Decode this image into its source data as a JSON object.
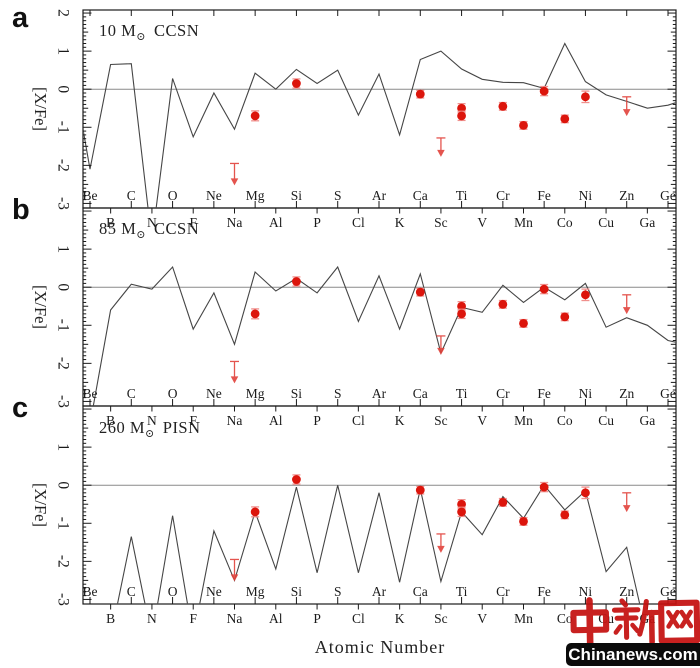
{
  "figure": {
    "kind": "three-panel stellar abundance pattern comparison",
    "background": "#ffffff"
  },
  "axis": {
    "xlabel": "Atomic Number",
    "ylabel": "[X/Fe]",
    "ytick_labels": [
      "2",
      "1",
      "0",
      "-1",
      "-2",
      "-3"
    ],
    "ytick_values": [
      2,
      1,
      0,
      -1,
      -2,
      -3
    ],
    "x_range_z": [
      4,
      32
    ],
    "elements": [
      {
        "z": 4,
        "sym": "Be"
      },
      {
        "z": 5,
        "sym": "B"
      },
      {
        "z": 6,
        "sym": "C"
      },
      {
        "z": 7,
        "sym": "N"
      },
      {
        "z": 8,
        "sym": "O"
      },
      {
        "z": 9,
        "sym": "F"
      },
      {
        "z": 10,
        "sym": "Ne"
      },
      {
        "z": 11,
        "sym": "Na"
      },
      {
        "z": 12,
        "sym": "Mg"
      },
      {
        "z": 13,
        "sym": "Al"
      },
      {
        "z": 14,
        "sym": "Si"
      },
      {
        "z": 15,
        "sym": "P"
      },
      {
        "z": 16,
        "sym": "S"
      },
      {
        "z": 17,
        "sym": "Cl"
      },
      {
        "z": 18,
        "sym": "Ar"
      },
      {
        "z": 19,
        "sym": "K"
      },
      {
        "z": 20,
        "sym": "Ca"
      },
      {
        "z": 21,
        "sym": "Sc"
      },
      {
        "z": 22,
        "sym": "Ti"
      },
      {
        "z": 23,
        "sym": "V"
      },
      {
        "z": 24,
        "sym": "Cr"
      },
      {
        "z": 25,
        "sym": "Mn"
      },
      {
        "z": 26,
        "sym": "Fe"
      },
      {
        "z": 27,
        "sym": "Co"
      },
      {
        "z": 28,
        "sym": "Ni"
      },
      {
        "z": 29,
        "sym": "Cu"
      },
      {
        "z": 30,
        "sym": "Zn"
      },
      {
        "z": 31,
        "sym": "Ga"
      },
      {
        "z": 32,
        "sym": "Ge"
      }
    ]
  },
  "panels": [
    {
      "letter": "a",
      "title": "10 M⊙ CCSN",
      "title_pre": "10 M",
      "title_sub": "⊙",
      "title_post": "CCSN"
    },
    {
      "letter": "b",
      "title": "85 M⊙ CCSN",
      "title_pre": "85 M",
      "title_sub": "⊙",
      "title_post": "CCSN"
    },
    {
      "letter": "c",
      "title": "260 M⊙ PISN",
      "title_pre": "260 M",
      "title_sub": "⊙",
      "title_post": "PISN"
    }
  ],
  "chart_data": [
    {
      "id": "a",
      "type": "line",
      "title": "10 M⊙ CCSN",
      "xlabel": "Atomic Number",
      "ylabel": "[X/Fe]",
      "ylim": [
        -3.12,
        2.08
      ],
      "x_atomic_numbers": [
        4,
        5,
        6,
        7,
        8,
        9,
        10,
        11,
        12,
        13,
        14,
        15,
        16,
        17,
        18,
        19,
        20,
        21,
        22,
        23,
        24,
        25,
        26,
        27,
        28,
        29,
        30,
        31,
        32
      ],
      "note": "model values of -4 are off-scale (line plunges below plot)",
      "model_xfe": [
        -2.1,
        0.65,
        0.67,
        -4,
        0.28,
        -1.25,
        -0.1,
        -1.05,
        0.42,
        0.0,
        0.52,
        0.15,
        0.5,
        -0.68,
        0.4,
        -1.2,
        0.78,
        1.0,
        0.53,
        0.26,
        0.18,
        0.17,
        0.02,
        1.2,
        0.2,
        -0.15,
        -0.32,
        -0.5,
        -0.42
      ],
      "edge_points": {
        "pre": {
          "z": 3.66,
          "v": -1.05
        },
        "post": {
          "z": 32.4,
          "v": -0.35
        }
      },
      "observed": [
        {
          "el": "Na",
          "z": 11,
          "kind": "upper_limit",
          "value": -1.95,
          "arrow_to": -2.5
        },
        {
          "el": "Mg",
          "z": 12,
          "kind": "point",
          "value": -0.7,
          "err": 0.13
        },
        {
          "el": "Si",
          "z": 14,
          "kind": "point",
          "value": 0.15,
          "err": 0.12
        },
        {
          "el": "Ca",
          "z": 20,
          "kind": "point",
          "value": -0.13,
          "err": 0.1
        },
        {
          "el": "Sc",
          "z": 21,
          "kind": "upper_limit",
          "value": -1.28,
          "arrow_to": -1.75
        },
        {
          "el": "Ti",
          "z": 22,
          "kind": "point",
          "value": -0.5,
          "err": 0.12
        },
        {
          "el": "Ti",
          "z": 22,
          "kind": "point",
          "value": -0.7,
          "err": 0.12
        },
        {
          "el": "Cr",
          "z": 24,
          "kind": "point",
          "value": -0.45,
          "err": 0.1
        },
        {
          "el": "Mn",
          "z": 25,
          "kind": "point",
          "value": -0.95,
          "err": 0.1
        },
        {
          "el": "Fe",
          "z": 26,
          "kind": "point",
          "value": -0.05,
          "err": 0.12
        },
        {
          "el": "Co",
          "z": 27,
          "kind": "point",
          "value": -0.78,
          "err": 0.1
        },
        {
          "el": "Ni",
          "z": 28,
          "kind": "point",
          "value": -0.2,
          "err": 0.15
        },
        {
          "el": "Zn",
          "z": 30,
          "kind": "upper_limit",
          "value": -0.2,
          "arrow_to": -0.68
        }
      ]
    },
    {
      "id": "b",
      "type": "line",
      "title": "85 M⊙ CCSN",
      "xlabel": "Atomic Number",
      "ylabel": "[X/Fe]",
      "ylim": [
        -3.12,
        2.08
      ],
      "x_atomic_numbers": [
        4,
        5,
        6,
        7,
        8,
        9,
        10,
        11,
        12,
        13,
        14,
        15,
        16,
        17,
        18,
        19,
        20,
        21,
        22,
        23,
        24,
        25,
        26,
        27,
        28,
        29,
        30,
        31,
        32
      ],
      "note": "model values of -4 are off-scale (line plunges below plot)",
      "model_xfe": [
        -3.6,
        -0.6,
        0.08,
        -0.05,
        0.53,
        -1.1,
        -0.15,
        -1.5,
        0.4,
        -0.1,
        0.23,
        -0.15,
        0.53,
        -0.9,
        0.3,
        -1.1,
        0.35,
        -1.73,
        -0.53,
        -0.66,
        0.05,
        -0.4,
        0.0,
        -0.33,
        0.1,
        -1.05,
        -0.8,
        -1.0,
        -1.4
      ],
      "edge_points": {
        "pre": {
          "z": 3.66,
          "v": -4
        },
        "post": {
          "z": 32.4,
          "v": -1.45
        }
      },
      "observed": [
        {
          "el": "Na",
          "z": 11,
          "kind": "upper_limit",
          "value": -1.95,
          "arrow_to": -2.5
        },
        {
          "el": "Mg",
          "z": 12,
          "kind": "point",
          "value": -0.7,
          "err": 0.13
        },
        {
          "el": "Si",
          "z": 14,
          "kind": "point",
          "value": 0.15,
          "err": 0.12
        },
        {
          "el": "Ca",
          "z": 20,
          "kind": "point",
          "value": -0.13,
          "err": 0.1
        },
        {
          "el": "Sc",
          "z": 21,
          "kind": "upper_limit",
          "value": -1.28,
          "arrow_to": -1.75
        },
        {
          "el": "Ti",
          "z": 22,
          "kind": "point",
          "value": -0.5,
          "err": 0.12
        },
        {
          "el": "Ti",
          "z": 22,
          "kind": "point",
          "value": -0.7,
          "err": 0.12
        },
        {
          "el": "Cr",
          "z": 24,
          "kind": "point",
          "value": -0.45,
          "err": 0.1
        },
        {
          "el": "Mn",
          "z": 25,
          "kind": "point",
          "value": -0.95,
          "err": 0.1
        },
        {
          "el": "Fe",
          "z": 26,
          "kind": "point",
          "value": -0.05,
          "err": 0.12
        },
        {
          "el": "Co",
          "z": 27,
          "kind": "point",
          "value": -0.78,
          "err": 0.1
        },
        {
          "el": "Ni",
          "z": 28,
          "kind": "point",
          "value": -0.2,
          "err": 0.15
        },
        {
          "el": "Zn",
          "z": 30,
          "kind": "upper_limit",
          "value": -0.2,
          "arrow_to": -0.68
        }
      ]
    },
    {
      "id": "c",
      "type": "line",
      "title": "260 M⊙ PISN",
      "xlabel": "Atomic Number",
      "ylabel": "[X/Fe]",
      "ylim": [
        -3.12,
        2.08
      ],
      "x_atomic_numbers": [
        4,
        5,
        6,
        7,
        8,
        9,
        10,
        11,
        12,
        13,
        14,
        15,
        16,
        17,
        18,
        19,
        20,
        21,
        22,
        23,
        24,
        25,
        26,
        27,
        28,
        29,
        30,
        31,
        32
      ],
      "note": "model values of -4 are off-scale (line plunges below plot)",
      "model_xfe": [
        -4,
        -4,
        -1.35,
        -4,
        -0.8,
        -4,
        -1.2,
        -2.5,
        -0.7,
        -2.2,
        -0.05,
        -2.3,
        0.0,
        -2.3,
        -0.2,
        -2.55,
        -0.1,
        -2.53,
        -0.7,
        -1.3,
        -0.3,
        -0.87,
        0.0,
        -0.65,
        -0.15,
        -2.27,
        -1.63,
        -4,
        -4
      ],
      "edge_points": {
        "pre": {
          "z": 3.66,
          "v": -4
        },
        "post": {
          "z": 32.4,
          "v": -4
        }
      },
      "observed": [
        {
          "el": "Na",
          "z": 11,
          "kind": "upper_limit",
          "value": -1.95,
          "arrow_to": -2.5
        },
        {
          "el": "Mg",
          "z": 12,
          "kind": "point",
          "value": -0.7,
          "err": 0.13
        },
        {
          "el": "Si",
          "z": 14,
          "kind": "point",
          "value": 0.15,
          "err": 0.12
        },
        {
          "el": "Ca",
          "z": 20,
          "kind": "point",
          "value": -0.13,
          "err": 0.1
        },
        {
          "el": "Sc",
          "z": 21,
          "kind": "upper_limit",
          "value": -1.28,
          "arrow_to": -1.75
        },
        {
          "el": "Ti",
          "z": 22,
          "kind": "point",
          "value": -0.5,
          "err": 0.12
        },
        {
          "el": "Ti",
          "z": 22,
          "kind": "point",
          "value": -0.7,
          "err": 0.12
        },
        {
          "el": "Cr",
          "z": 24,
          "kind": "point",
          "value": -0.45,
          "err": 0.1
        },
        {
          "el": "Mn",
          "z": 25,
          "kind": "point",
          "value": -0.95,
          "err": 0.1
        },
        {
          "el": "Fe",
          "z": 26,
          "kind": "point",
          "value": -0.05,
          "err": 0.12
        },
        {
          "el": "Co",
          "z": 27,
          "kind": "point",
          "value": -0.78,
          "err": 0.1
        },
        {
          "el": "Ni",
          "z": 28,
          "kind": "point",
          "value": -0.2,
          "err": 0.15
        },
        {
          "el": "Zn",
          "z": 30,
          "kind": "upper_limit",
          "value": -0.2,
          "arrow_to": -0.68
        }
      ]
    }
  ],
  "colors": {
    "point_red": "#dc150c",
    "errorbar_pink": "#f0908d",
    "limit_red": "#e2423b",
    "curve": "#454545",
    "zero_line": "#8a8a8a",
    "frame": "#1a1a1a",
    "text": "#1a1a1a",
    "watermark_red": "#c41110",
    "bar_background": "#0b0b0b",
    "bar_text": "#ffffff"
  },
  "watermark": {
    "cn": "中新网",
    "en": "Chinanews.com"
  }
}
